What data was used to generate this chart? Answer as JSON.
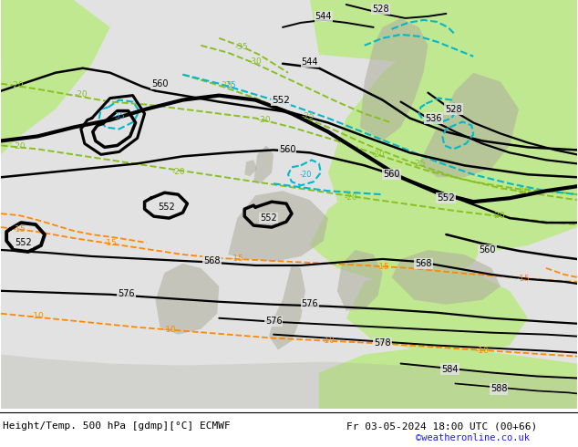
{
  "title_left": "Height/Temp. 500 hPa [gdmp][°C] ECMWF",
  "title_right": "Fr 03-05-2024 18:00 UTC (00+66)",
  "credit": "©weatheronline.co.uk",
  "bg_gray": "#e8e8e8",
  "bg_green": "#c8f0a0",
  "coast_gray": "#b8b8a8",
  "figsize": [
    6.34,
    4.9
  ],
  "dpi": 100
}
